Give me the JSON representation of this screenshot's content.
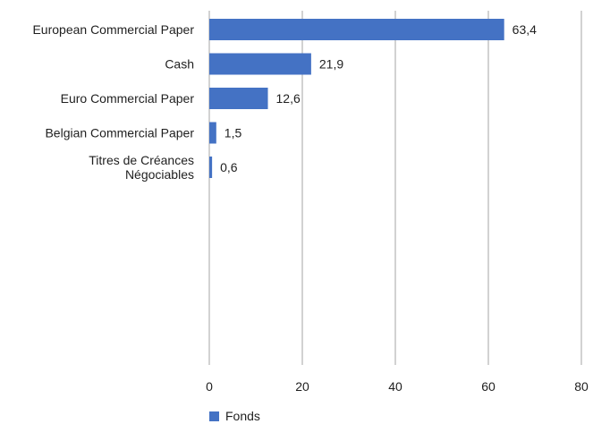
{
  "chart_data": {
    "type": "bar",
    "orientation": "horizontal",
    "categories": [
      [
        "European Commercial Paper"
      ],
      [
        "Cash"
      ],
      [
        "Euro Commercial Paper"
      ],
      [
        "Belgian Commercial Paper"
      ],
      [
        "Titres de Créances",
        "Négociables"
      ]
    ],
    "series": [
      {
        "name": "Fonds",
        "values": [
          63.4,
          21.9,
          12.6,
          1.5,
          0.6
        ],
        "labels": [
          "63,4",
          "21,9",
          "12,6",
          "1,5",
          "0,6"
        ],
        "color": "#4472c4"
      }
    ],
    "xlim": [
      0,
      80
    ],
    "xticks": [
      0,
      20,
      40,
      60,
      80
    ],
    "grid": true,
    "legend": "bottom-left",
    "colors": {
      "bar": "#4472c4",
      "grid": "#a6a6a6",
      "text": "#1f1f1f"
    }
  }
}
